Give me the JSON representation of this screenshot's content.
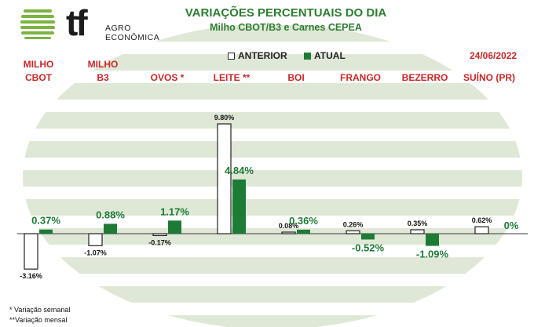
{
  "header": {
    "logo_line1": "AGRO",
    "logo_line2": "ECONÔMICA",
    "title": "VARIAÇÕES PERCENTUAIS DO DIA",
    "subtitle": "Milho CBOT/B3 e Carnes CEPEA",
    "date": "24/06/2022"
  },
  "legend": {
    "anterior": "ANTERIOR",
    "atual": "ATUAL"
  },
  "footnotes": {
    "weekly": "* Variação semanal",
    "monthly": "**Variação mensal"
  },
  "colors": {
    "title_green": "#2e7d32",
    "category_red": "#c62828",
    "atual_bar": "#1e7b35",
    "anterior_bar": "#ffffff",
    "bar_outline": "#222222",
    "stripe": "#dfe8d6"
  },
  "chart_data": {
    "type": "bar",
    "categories": [
      [
        "MILHO",
        "CBOT"
      ],
      [
        "MILHO",
        "B3"
      ],
      [
        "OVOS *"
      ],
      [
        "LEITE **"
      ],
      [
        "BOI"
      ],
      [
        "FRANGO"
      ],
      [
        "BEZERRO"
      ],
      [
        "SUÍNO (PR)"
      ]
    ],
    "series": [
      {
        "name": "ANTERIOR",
        "values": [
          -3.16,
          -1.07,
          -0.17,
          9.8,
          0.08,
          0.26,
          0.35,
          0.62
        ],
        "labels": [
          "-3.16%",
          "-1.07%",
          "-0.17%",
          "9.80%",
          "0.08%",
          "0.26%",
          "0.35%",
          "0.62%"
        ]
      },
      {
        "name": "ATUAL",
        "values": [
          0.37,
          0.88,
          1.17,
          4.84,
          0.36,
          -0.52,
          -1.09,
          0
        ],
        "labels": [
          "0.37%",
          "0.88%",
          "1.17%",
          "4.84%",
          "0.36%",
          "-0.52%",
          "-1.09%",
          "0%"
        ]
      }
    ],
    "grid": false,
    "legend_position": "top-center"
  }
}
